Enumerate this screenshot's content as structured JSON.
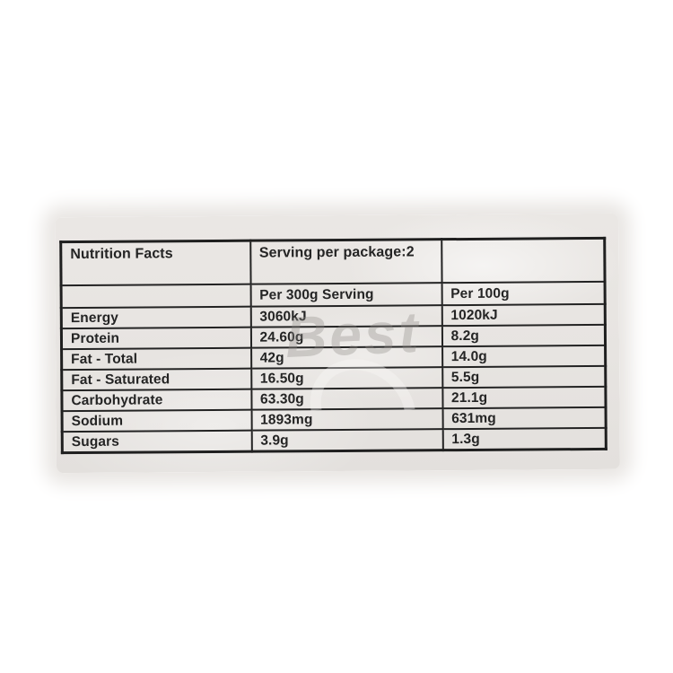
{
  "page": {
    "background_color": "#ffffff",
    "photo_background_color": "#e8e5e2",
    "border_color": "#232323",
    "text_color": "#242424"
  },
  "watermark": {
    "text": "Best",
    "color": "#8f8b87"
  },
  "table": {
    "header": {
      "col1": "Nutrition Facts",
      "col2": "Serving per package:2",
      "col3": ""
    },
    "subheader": {
      "col1": "",
      "col2": "Per 300g Serving",
      "col3": "Per 100g"
    },
    "rows": [
      {
        "label": "Energy",
        "per_serving": "3060kJ",
        "per_100g": "1020kJ"
      },
      {
        "label": "Protein",
        "per_serving": "24.60g",
        "per_100g": "8.2g"
      },
      {
        "label": "Fat - Total",
        "per_serving": "42g",
        "per_100g": "14.0g"
      },
      {
        "label": "Fat - Saturated",
        "per_serving": "16.50g",
        "per_100g": "5.5g"
      },
      {
        "label": "Carbohydrate",
        "per_serving": "63.30g",
        "per_100g": "21.1g"
      },
      {
        "label": "Sodium",
        "per_serving": "1893mg",
        "per_100g": "631mg"
      },
      {
        "label": "Sugars",
        "per_serving": "3.9g",
        "per_100g": "1.3g"
      }
    ]
  }
}
